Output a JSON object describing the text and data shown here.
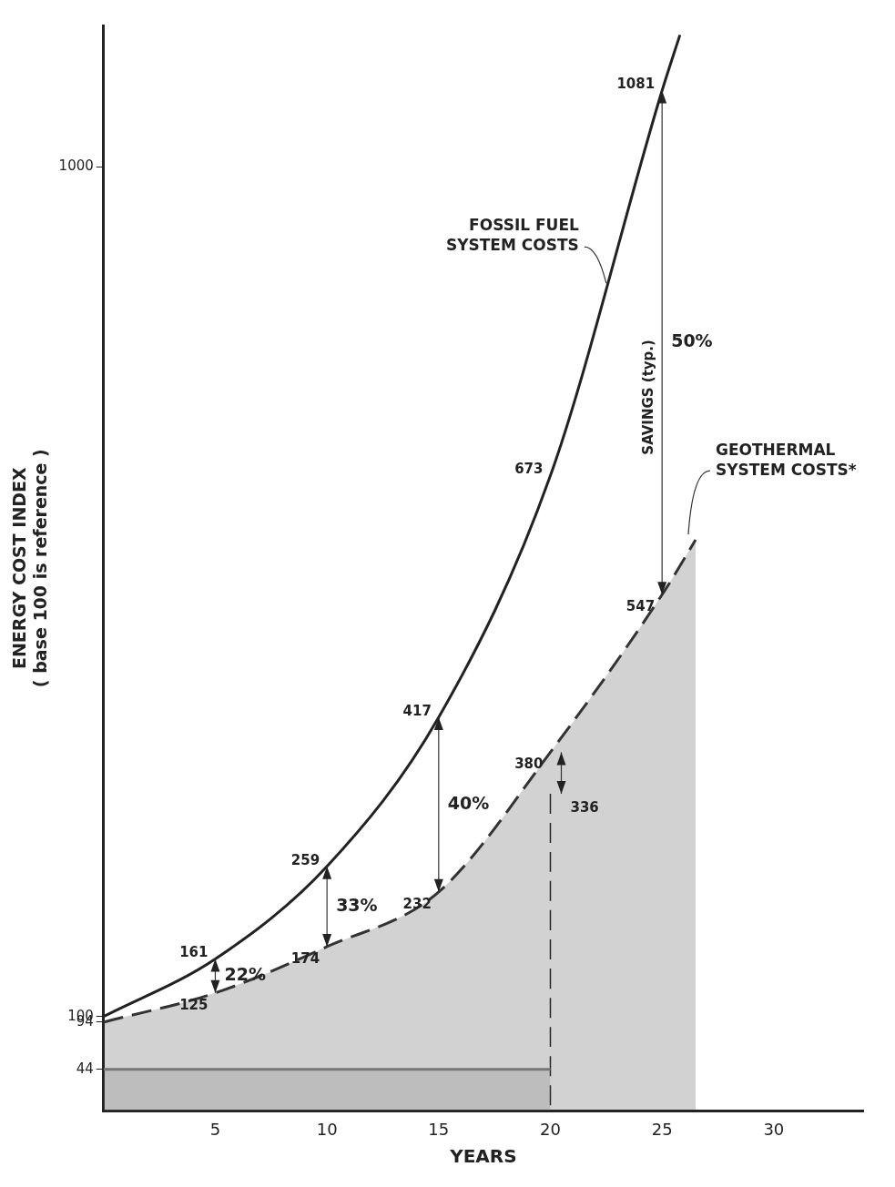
{
  "chart_data": {
    "type": "line",
    "xlabel": "YEARS",
    "ylabel": "ENERGY COST INDEX\n( base 100 is reference )",
    "xlim": [
      0,
      34
    ],
    "xticks": [
      5,
      10,
      15,
      20,
      25,
      30
    ],
    "ylim": [
      0,
      1150
    ],
    "yticks": [
      44,
      94,
      100,
      1000
    ],
    "grid": false,
    "legend": false,
    "marker": "none",
    "series": [
      {
        "name": "FOSSIL FUEL SYSTEM COSTS",
        "color": "#222222",
        "line_style": "solid",
        "x": [
          0,
          5,
          10,
          15,
          20,
          25,
          25.8
        ],
        "values": [
          100,
          161,
          259,
          417,
          673,
          1081,
          1140
        ],
        "value_labels": [
          null,
          "161",
          "259",
          "417",
          "673",
          "1081",
          null
        ]
      },
      {
        "name": "GEOTHERMAL SYSTEM COSTS*",
        "type": "area",
        "color": "#333333",
        "line_style": "dashed",
        "x": [
          0,
          5,
          10,
          15,
          20,
          25,
          26.5
        ],
        "values": [
          94,
          125,
          174,
          232,
          380,
          547,
          605
        ],
        "value_labels": [
          null,
          "125",
          "174",
          "232",
          "380",
          "547",
          null
        ]
      },
      {
        "type": "area",
        "color": "#888888",
        "line_style": "solid",
        "x": [
          0,
          20
        ],
        "values": [
          44,
          44
        ]
      },
      {
        "color": "#222222",
        "line_style": "dashed",
        "x": [
          20,
          20
        ],
        "values": [
          336,
          0
        ],
        "value_labels": [
          "336",
          null
        ]
      }
    ],
    "annotations": [
      "22%",
      "33%",
      "40%",
      "50%",
      "SAVINGS (typ.)"
    ]
  }
}
